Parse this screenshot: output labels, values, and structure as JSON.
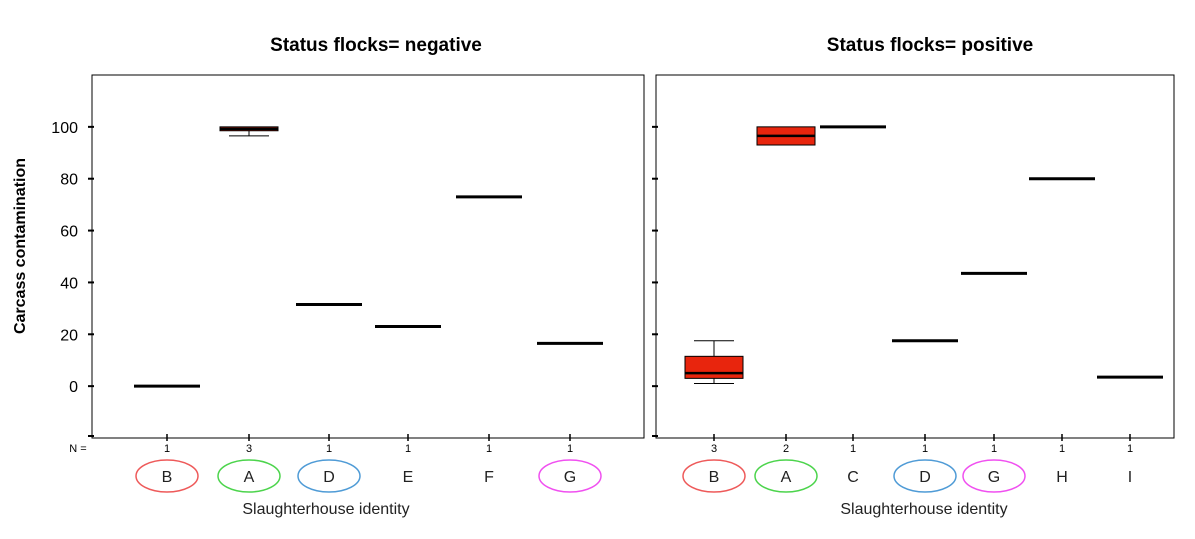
{
  "chart_data": {
    "type": "box",
    "ylabel": "Carcass contamination",
    "ylim": [
      -20,
      120
    ],
    "yticks": [
      0,
      20,
      40,
      60,
      80,
      100
    ],
    "n_prefix": "N =",
    "colors": {
      "box_fill": "#e8250d",
      "median": "#000000",
      "frame": "#000000"
    },
    "panels": [
      {
        "title": "Status flocks= negative",
        "xlabel": "Slaughterhouse identity",
        "categories": [
          {
            "label": "B",
            "n": "1",
            "circle": "#ee5a5a",
            "stats": {
              "median": 0
            }
          },
          {
            "label": "A",
            "n": "3",
            "circle": "#4cd44c",
            "stats": {
              "min": 96.5,
              "q1": 98.5,
              "median": 99.2,
              "q3": 100,
              "max": 100
            }
          },
          {
            "label": "D",
            "n": "1",
            "circle": "#4f9bd6",
            "stats": {
              "median": 31.5
            }
          },
          {
            "label": "E",
            "n": "1",
            "circle": null,
            "stats": {
              "median": 23
            }
          },
          {
            "label": "F",
            "n": "1",
            "circle": null,
            "stats": {
              "median": 73
            }
          },
          {
            "label": "G",
            "n": "1",
            "circle": "#f050f0",
            "stats": {
              "median": 16.5
            }
          }
        ]
      },
      {
        "title": "Status flocks= positive",
        "xlabel": "Slaughterhouse identity",
        "categories": [
          {
            "label": "B",
            "n": "3",
            "circle": "#ee5a5a",
            "stats": {
              "min": 1,
              "q1": 3,
              "median": 5,
              "q3": 11.5,
              "max": 17.5
            }
          },
          {
            "label": "A",
            "n": "2",
            "circle": "#4cd44c",
            "stats": {
              "min": 93,
              "q1": 93,
              "median": 96.5,
              "q3": 100,
              "max": 100
            }
          },
          {
            "label": "C",
            "n": "1",
            "circle": null,
            "stats": {
              "median": 100
            }
          },
          {
            "label": "D",
            "n": "1",
            "circle": "#4f9bd6",
            "stats": {
              "median": 17.5
            }
          },
          {
            "label": "G",
            "n": "1",
            "circle": "#f050f0",
            "stats": {
              "median": 43.5
            }
          },
          {
            "label": "H",
            "n": "1",
            "circle": null,
            "stats": {
              "median": 80
            }
          },
          {
            "label": "I",
            "n": "1",
            "circle": null,
            "stats": {
              "median": 3.5
            }
          }
        ]
      }
    ]
  }
}
